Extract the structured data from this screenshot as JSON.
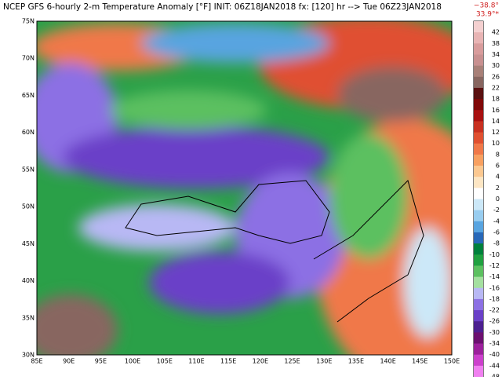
{
  "header": {
    "title": "NCEP GFS 6-hourly 2-m Temperature Anomaly [°F]  INIT: 06Z18JAN2018  fx: [120] hr --> Tue 06Z23JAN2018",
    "min": "−38.8°",
    "max": "33.9°*"
  },
  "map": {
    "lat_labels": [
      "75N",
      "70N",
      "65N",
      "60N",
      "55N",
      "50N",
      "45N",
      "40N",
      "35N",
      "30N"
    ],
    "lon_labels": [
      "85E",
      "90E",
      "95E",
      "100E",
      "105E",
      "110E",
      "115E",
      "120E",
      "125E",
      "130E",
      "135E",
      "140E",
      "145E",
      "150E"
    ]
  },
  "colorbar": {
    "levels": [
      42,
      38,
      34,
      30,
      26,
      22,
      18,
      16,
      14,
      12,
      10,
      8,
      6,
      4,
      2,
      0,
      -2,
      -4,
      -6,
      -8,
      -10,
      -12,
      -14,
      -16,
      -18,
      -22,
      -26,
      -30,
      -34,
      -40,
      -44,
      -48
    ],
    "colors": [
      "#f4d0d0",
      "#e8b4b4",
      "#d89c9c",
      "#c89090",
      "#a88078",
      "#886660",
      "#5a1010",
      "#800808",
      "#a81010",
      "#c83020",
      "#e05030",
      "#f07848",
      "#f8a060",
      "#fcc890",
      "#fde6c4",
      "#ffffff",
      "#cce8f8",
      "#98cdf0",
      "#58a4e0",
      "#2868b8",
      "#00803c",
      "#20a040",
      "#5cc060",
      "#a4e0a0",
      "#b8b8f4",
      "#8c70e4",
      "#6a40c8",
      "#4c2090",
      "#6c1070",
      "#9c209c",
      "#cc40cc",
      "#f080f0"
    ]
  }
}
